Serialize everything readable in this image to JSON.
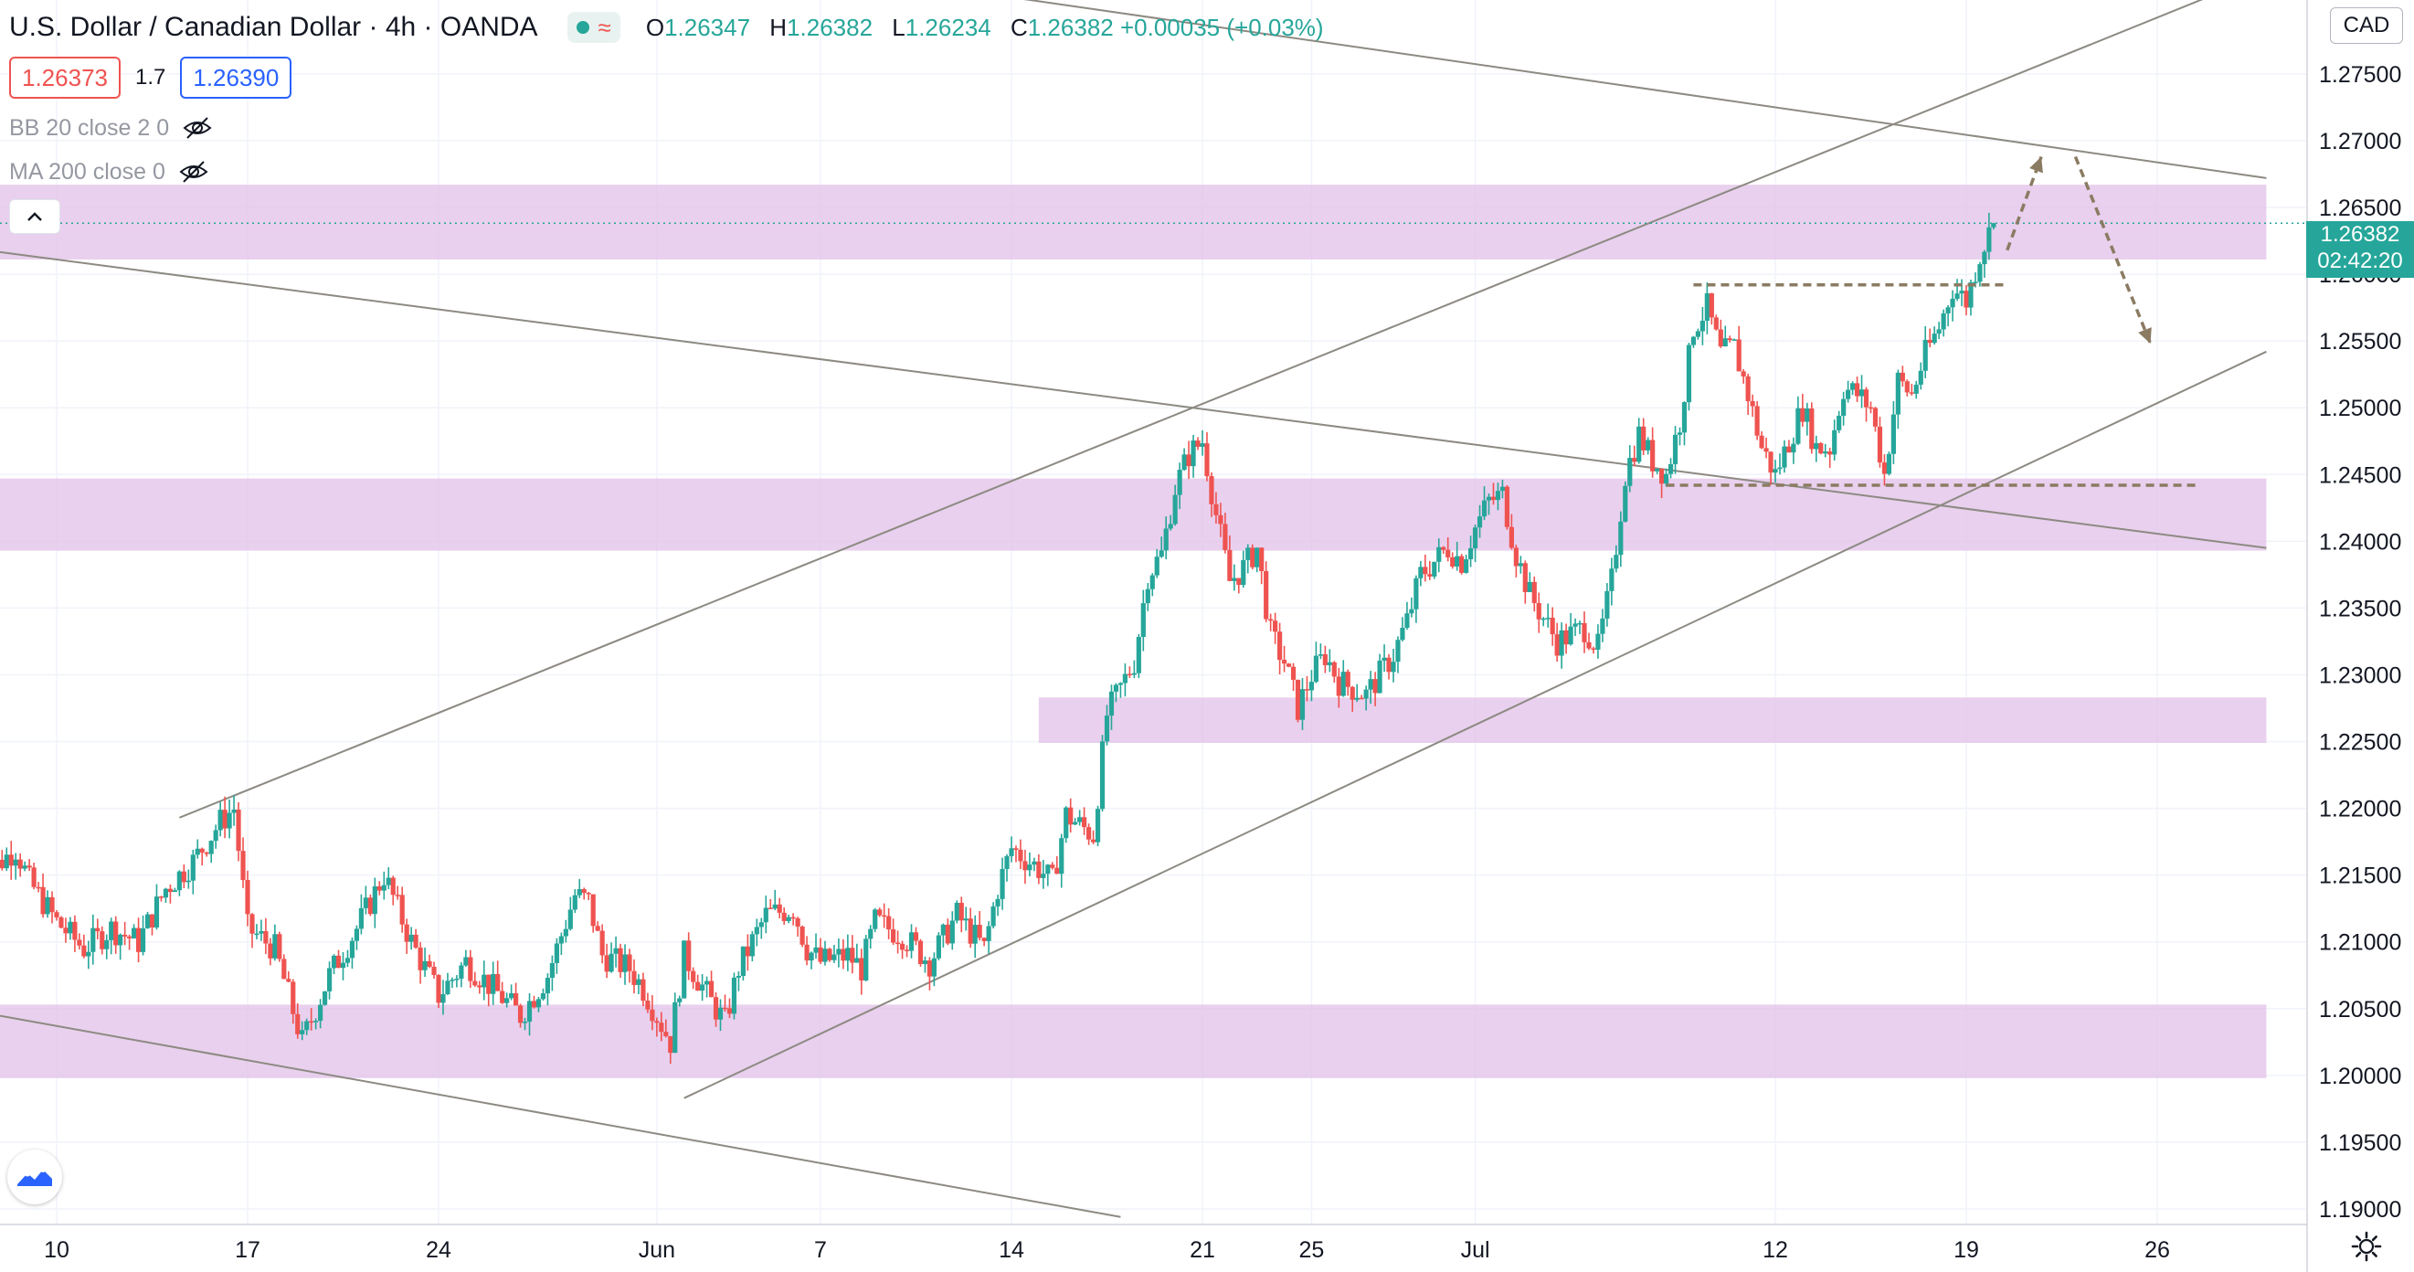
{
  "header": {
    "title": "U.S. Dollar / Canadian Dollar · 4h · OANDA",
    "ohlc": [
      {
        "k": "O",
        "v": "1.26347"
      },
      {
        "k": "H",
        "v": "1.26382"
      },
      {
        "k": "L",
        "v": "1.26234"
      },
      {
        "k": "C",
        "v": "1.26382 +0.00035 (+0.03%)"
      }
    ]
  },
  "trade": {
    "sell": "1.26373",
    "spread": "1.7",
    "buy": "1.26390"
  },
  "indicators": [
    {
      "label": "BB 20 close 2 0"
    },
    {
      "label": "MA 200 close 0"
    }
  ],
  "currency": "CAD",
  "last_price": {
    "value": "1.26382",
    "countdown": "02:42:20"
  },
  "colors": {
    "up": "#26a69a",
    "down": "#ef5350",
    "zone": "#e1bee7",
    "trendline": "#8d8a82",
    "annotation": "#8a7b62"
  },
  "icons": {
    "eye": "eye-off-icon",
    "collapse": "chevron-up-icon",
    "logo": "tradingview-logo-icon",
    "settings": "gear-icon"
  },
  "chart_data": {
    "type": "candlestick",
    "timeframe": "4h",
    "x_range": [
      "2021-05-07",
      "2021-07-30"
    ],
    "ylim": [
      1.188,
      1.282
    ],
    "y_ticks": [
      "1.27500",
      "1.27000",
      "1.26500",
      "1.26000",
      "1.25500",
      "1.25000",
      "1.24500",
      "1.24000",
      "1.23500",
      "1.23000",
      "1.22500",
      "1.22000",
      "1.21500",
      "1.21000",
      "1.20500",
      "1.20000",
      "1.19500",
      "1.19000"
    ],
    "x_ticks": [
      {
        "label": "10",
        "date": "2021-05-10"
      },
      {
        "label": "17",
        "date": "2021-05-17"
      },
      {
        "label": "24",
        "date": "2021-05-24"
      },
      {
        "label": "Jun",
        "date": "2021-06-01"
      },
      {
        "label": "7",
        "date": "2021-06-07"
      },
      {
        "label": "14",
        "date": "2021-06-14"
      },
      {
        "label": "21",
        "date": "2021-06-21"
      },
      {
        "label": "25",
        "date": "2021-06-25"
      },
      {
        "label": "Jul",
        "date": "2021-07-01"
      },
      {
        "label": "12",
        "date": "2021-07-12"
      },
      {
        "label": "19",
        "date": "2021-07-19"
      },
      {
        "label": "26",
        "date": "2021-07-26"
      }
    ],
    "price_path": [
      [
        "2021-05-07T00:00",
        1.2185
      ],
      [
        "2021-05-07T16:00",
        1.2155
      ],
      [
        "2021-05-08T12:00",
        1.217
      ],
      [
        "2021-05-09T00:00",
        1.2145
      ],
      [
        "2021-05-10T00:00",
        1.2115
      ],
      [
        "2021-05-11T00:00",
        1.2095
      ],
      [
        "2021-05-12T00:00",
        1.211
      ],
      [
        "2021-05-13T00:00",
        1.21
      ],
      [
        "2021-05-14T00:00",
        1.214
      ],
      [
        "2021-05-15T00:00",
        1.216
      ],
      [
        "2021-05-16T00:00",
        1.219
      ],
      [
        "2021-05-16T12:00",
        1.22
      ],
      [
        "2021-05-17T00:00",
        1.211
      ],
      [
        "2021-05-18T00:00",
        1.2095
      ],
      [
        "2021-05-18T12:00",
        1.206
      ],
      [
        "2021-05-19T00:00",
        1.2025
      ],
      [
        "2021-05-20T00:00",
        1.2075
      ],
      [
        "2021-05-21T00:00",
        1.211
      ],
      [
        "2021-05-22T00:00",
        1.215
      ],
      [
        "2021-05-23T00:00",
        1.21
      ],
      [
        "2021-05-24T00:00",
        1.206
      ],
      [
        "2021-05-25T00:00",
        1.2085
      ],
      [
        "2021-05-26T00:00",
        1.2065
      ],
      [
        "2021-05-27T00:00",
        1.2045
      ],
      [
        "2021-05-28T00:00",
        1.2075
      ],
      [
        "2021-05-29T00:00",
        1.2135
      ],
      [
        "2021-05-29T12:00",
        1.213
      ],
      [
        "2021-05-30T00:00",
        1.209
      ],
      [
        "2021-05-31T00:00",
        1.208
      ],
      [
        "2021-05-31T12:00",
        1.2065
      ],
      [
        "2021-06-01T00:00",
        1.2045
      ],
      [
        "2021-06-01T12:00",
        1.2025
      ],
      [
        "2021-06-02T00:00",
        1.209
      ],
      [
        "2021-06-03T00:00",
        1.2055
      ],
      [
        "2021-06-03T12:00",
        1.204
      ],
      [
        "2021-06-04T00:00",
        1.208
      ],
      [
        "2021-06-05T00:00",
        1.212
      ],
      [
        "2021-06-06T00:00",
        1.2125
      ],
      [
        "2021-06-06T12:00",
        1.2095
      ],
      [
        "2021-06-07T00:00",
        1.2085
      ],
      [
        "2021-06-08T00:00",
        1.209
      ],
      [
        "2021-06-08T12:00",
        1.208
      ],
      [
        "2021-06-09T00:00",
        1.2115
      ],
      [
        "2021-06-10T00:00",
        1.2105
      ],
      [
        "2021-06-11T00:00",
        1.2085
      ],
      [
        "2021-06-12T00:00",
        1.212
      ],
      [
        "2021-06-13T00:00",
        1.2095
      ],
      [
        "2021-06-13T12:00",
        1.214
      ],
      [
        "2021-06-14T00:00",
        1.217
      ],
      [
        "2021-06-15T00:00",
        1.2155
      ],
      [
        "2021-06-15T12:00",
        1.2145
      ],
      [
        "2021-06-16T00:00",
        1.2195
      ],
      [
        "2021-06-17T00:00",
        1.218
      ],
      [
        "2021-06-17T12:00",
        1.227
      ],
      [
        "2021-06-18T00:00",
        1.229
      ],
      [
        "2021-06-18T12:00",
        1.231
      ],
      [
        "2021-06-19T00:00",
        1.2375
      ],
      [
        "2021-06-19T12:00",
        1.239
      ],
      [
        "2021-06-20T00:00",
        1.244
      ],
      [
        "2021-06-20T12:00",
        1.2465
      ],
      [
        "2021-06-21T00:00",
        1.2475
      ],
      [
        "2021-06-21T12:00",
        1.242
      ],
      [
        "2021-06-22T00:00",
        1.237
      ],
      [
        "2021-06-22T12:00",
        1.238
      ],
      [
        "2021-06-23T00:00",
        1.2395
      ],
      [
        "2021-06-23T12:00",
        1.233
      ],
      [
        "2021-06-24T00:00",
        1.231
      ],
      [
        "2021-06-24T12:00",
        1.2275
      ],
      [
        "2021-06-25T00:00",
        1.23
      ],
      [
        "2021-06-25T12:00",
        1.2315
      ],
      [
        "2021-06-26T00:00",
        1.2295
      ],
      [
        "2021-06-27T00:00",
        1.2285
      ],
      [
        "2021-06-28T00:00",
        1.2315
      ],
      [
        "2021-06-28T12:00",
        1.234
      ],
      [
        "2021-06-29T00:00",
        1.2375
      ],
      [
        "2021-06-30T00:00",
        1.2395
      ],
      [
        "2021-06-30T12:00",
        1.2385
      ],
      [
        "2021-07-01T00:00",
        1.241
      ],
      [
        "2021-07-01T12:00",
        1.243
      ],
      [
        "2021-07-02T00:00",
        1.2435
      ],
      [
        "2021-07-02T12:00",
        1.239
      ],
      [
        "2021-07-03T00:00",
        1.236
      ],
      [
        "2021-07-04T00:00",
        1.2325
      ],
      [
        "2021-07-05T00:00",
        1.2335
      ],
      [
        "2021-07-05T12:00",
        1.232
      ],
      [
        "2021-07-06T00:00",
        1.237
      ],
      [
        "2021-07-06T12:00",
        1.245
      ],
      [
        "2021-07-07T00:00",
        1.248
      ],
      [
        "2021-07-07T12:00",
        1.246
      ],
      [
        "2021-07-08T00:00",
        1.245
      ],
      [
        "2021-07-08T12:00",
        1.249
      ],
      [
        "2021-07-09T00:00",
        1.256
      ],
      [
        "2021-07-09T12:00",
        1.2575
      ],
      [
        "2021-07-10T00:00",
        1.254
      ],
      [
        "2021-07-10T12:00",
        1.2545
      ],
      [
        "2021-07-11T00:00",
        1.251
      ],
      [
        "2021-07-11T12:00",
        1.247
      ],
      [
        "2021-07-12T00:00",
        1.245
      ],
      [
        "2021-07-12T12:00",
        1.2475
      ],
      [
        "2021-07-13T00:00",
        1.25
      ],
      [
        "2021-07-13T12:00",
        1.247
      ],
      [
        "2021-07-14T00:00",
        1.247
      ],
      [
        "2021-07-14T12:00",
        1.2515
      ],
      [
        "2021-07-15T00:00",
        1.251
      ],
      [
        "2021-07-15T12:00",
        1.25
      ],
      [
        "2021-07-16T00:00",
        1.245
      ],
      [
        "2021-07-16T12:00",
        1.252
      ],
      [
        "2021-07-17T00:00",
        1.251
      ],
      [
        "2021-07-17T12:00",
        1.254
      ],
      [
        "2021-07-18T00:00",
        1.256
      ],
      [
        "2021-07-18T12:00",
        1.259
      ],
      [
        "2021-07-19T00:00",
        1.258
      ],
      [
        "2021-07-19T12:00",
        1.2615
      ],
      [
        "2021-07-20T00:00",
        1.26382
      ]
    ],
    "zones": [
      {
        "from": 1.2611,
        "to": 1.2667,
        "start": "2021-05-07",
        "end": "2021-07-30"
      },
      {
        "from": 1.2393,
        "to": 1.2447,
        "start": "2021-05-07",
        "end": "2021-07-30"
      },
      {
        "from": 1.2249,
        "to": 1.2283,
        "start": "2021-06-15T00:00",
        "end": "2021-07-30"
      },
      {
        "from": 1.1998,
        "to": 1.2053,
        "start": "2021-05-07",
        "end": "2021-07-30"
      }
    ],
    "trendlines": [
      {
        "x1": "2021-05-07",
        "y1": 1.2619,
        "x2": "2021-07-30",
        "y2": 1.2395
      },
      {
        "x1": "2021-05-07",
        "y1": 1.2048,
        "x2": "2021-06-18T00:00",
        "y2": 1.1894
      },
      {
        "x1": "2021-05-14T12:00",
        "y1": 1.2193,
        "x2": "2021-07-29T00:00",
        "y2": 1.2817
      },
      {
        "x1": "2021-06-02T00:00",
        "y1": 1.1983,
        "x2": "2021-07-30",
        "y2": 1.2542
      },
      {
        "x1": "2021-06-08T00:00",
        "y1": 1.2825,
        "x2": "2021-07-30",
        "y2": 1.2672
      }
    ],
    "dashed_levels": [
      {
        "y": 1.2592,
        "start": "2021-07-09T00:00",
        "end": "2021-07-20T12:00"
      },
      {
        "y": 1.2442,
        "start": "2021-07-08T00:00",
        "end": "2021-07-27T12:00"
      }
    ],
    "arrows": [
      {
        "from": [
          "2021-07-20T12:00",
          1.2618
        ],
        "to": [
          "2021-07-21T18:00",
          1.2688
        ]
      },
      {
        "from": [
          "2021-07-23T00:00",
          1.2688
        ],
        "to": [
          "2021-07-25T18:00",
          1.2548
        ]
      }
    ]
  }
}
